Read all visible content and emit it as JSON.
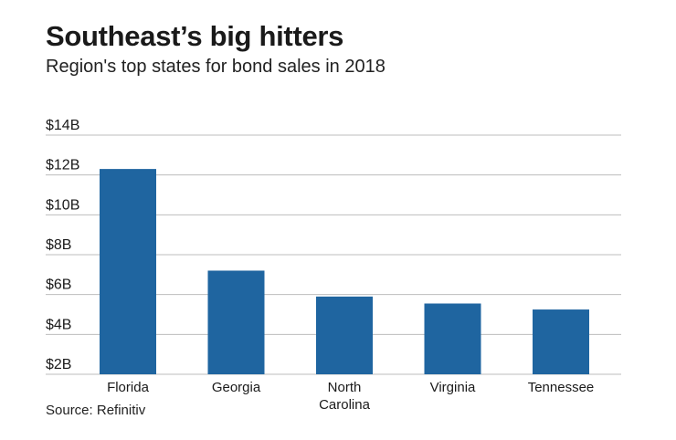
{
  "header": {
    "title": "Southeast’s big hitters",
    "subtitle": "Region's top states for bond sales in 2018"
  },
  "footer": {
    "source": "Source: Refinitiv"
  },
  "chart_data": {
    "type": "bar",
    "categories": [
      "Florida",
      "Georgia",
      "North Carolina",
      "Virginia",
      "Tennessee"
    ],
    "category_lines": [
      [
        "Florida"
      ],
      [
        "Georgia"
      ],
      [
        "North",
        "Carolina"
      ],
      [
        "Virginia"
      ],
      [
        "Tennessee"
      ]
    ],
    "values": [
      12.3,
      7.2,
      5.9,
      5.55,
      5.25
    ],
    "ylim": [
      2,
      14
    ],
    "yticks": [
      2,
      4,
      6,
      8,
      10,
      12,
      14
    ],
    "ytick_labels": [
      "$2B",
      "$4B",
      "$6B",
      "$8B",
      "$10B",
      "$12B",
      "$14B"
    ],
    "grid": true,
    "bar_color": "#1f65a0",
    "grid_color": "#bdbdbd"
  }
}
